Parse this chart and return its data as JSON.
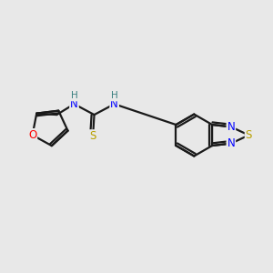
{
  "background_color": "#e8e8e8",
  "bond_color": "#1a1a1a",
  "atom_colors": {
    "N": "#0000ff",
    "O": "#ff0000",
    "S_thio": "#b8a000",
    "S_ring": "#b8a000",
    "H": "#3a8080",
    "C": "#1a1a1a"
  },
  "figsize": [
    3.0,
    3.0
  ],
  "dpi": 100
}
